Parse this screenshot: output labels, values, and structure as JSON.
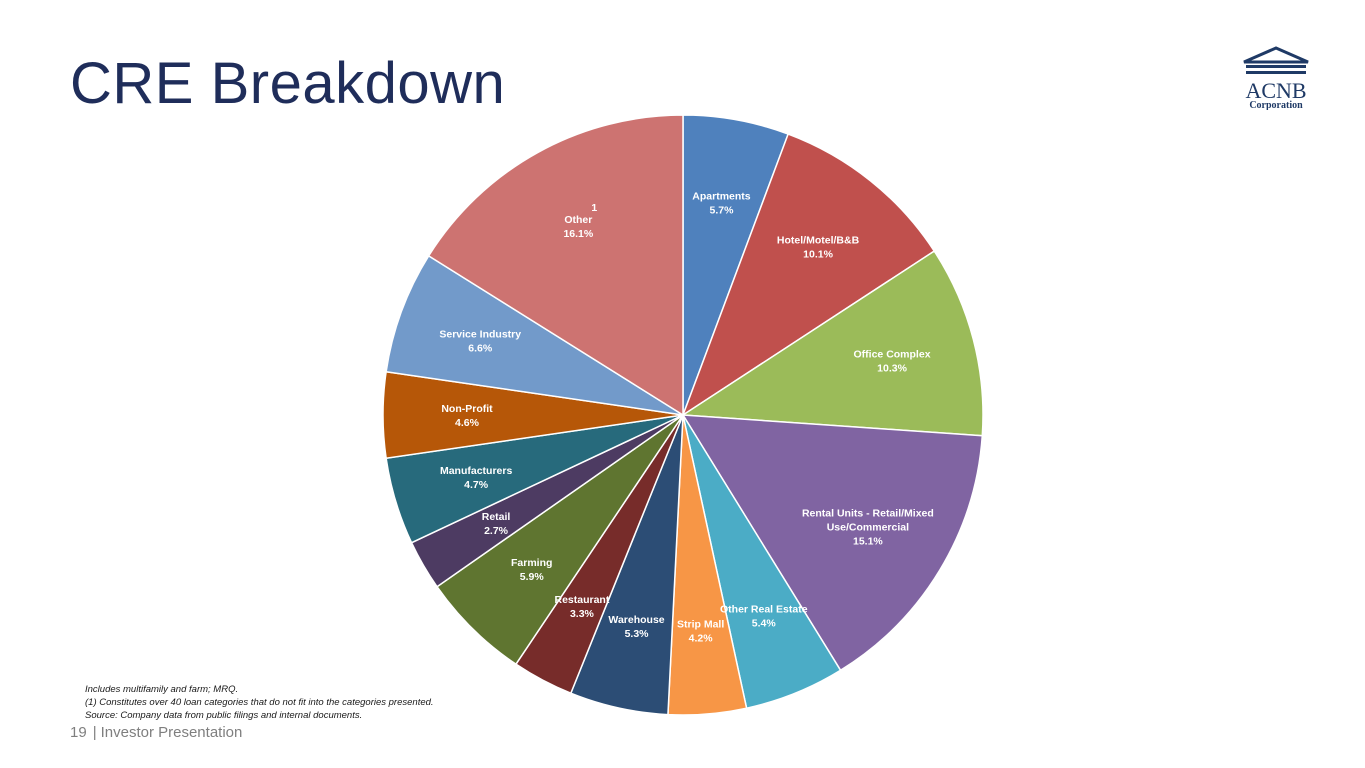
{
  "page": {
    "title": "CRE Breakdown",
    "page_number": "19",
    "footer_label": "Investor Presentation",
    "logo_text": "ACNB",
    "logo_subtext": "Corporation",
    "notes": [
      "Includes multifamily and farm; MRQ.",
      "(1) Constitutes over 40 loan categories that do not fit into the categories presented.",
      "Source: Company data from public filings and internal documents."
    ]
  },
  "colors": {
    "title": "#1f2d5a",
    "logo": "#1f3a66"
  },
  "chart_data": {
    "type": "pie",
    "title": "",
    "start_angle_deg": 0,
    "direction": "clockwise",
    "slices": [
      {
        "label": "Apartments",
        "value": 5.7,
        "display": "5.7%",
        "color": "#4f81bd"
      },
      {
        "label": "Hotel/Motel/B&B",
        "value": 10.1,
        "display": "10.1%",
        "color": "#c0504d"
      },
      {
        "label": "Office Complex",
        "value": 10.3,
        "display": "10.3%",
        "color": "#9bbb59"
      },
      {
        "label": "Rental Units - Retail/Mixed Use/Commercial",
        "label_lines": [
          "Rental Units - Retail/Mixed",
          "Use/Commercial"
        ],
        "value": 15.1,
        "display": "15.1%",
        "color": "#8064a2"
      },
      {
        "label": "Other Real Estate",
        "value": 5.4,
        "display": "5.4%",
        "color": "#4bacc6"
      },
      {
        "label": "Strip Mall",
        "value": 4.2,
        "display": "4.2%",
        "color": "#f79646"
      },
      {
        "label": "Warehouse",
        "value": 5.3,
        "display": "5.3%",
        "color": "#2c4d75"
      },
      {
        "label": "Restaurant",
        "value": 3.3,
        "display": "3.3%",
        "color": "#772c2a"
      },
      {
        "label": "Farming",
        "value": 5.9,
        "display": "5.9%",
        "color": "#5f7530"
      },
      {
        "label": "Retail",
        "value": 2.7,
        "display": "2.7%",
        "color": "#4d3b62"
      },
      {
        "label": "Manufacturers",
        "value": 4.7,
        "display": "4.7%",
        "color": "#276a7c"
      },
      {
        "label": "Non-Profit",
        "value": 4.6,
        "display": "4.6%",
        "color": "#b65708"
      },
      {
        "label": "Service Industry",
        "value": 6.6,
        "display": "6.6%",
        "color": "#729aca"
      },
      {
        "label": "Other",
        "value": 16.1,
        "display": "16.1%",
        "color": "#cd7371",
        "footnote": "1"
      }
    ]
  }
}
